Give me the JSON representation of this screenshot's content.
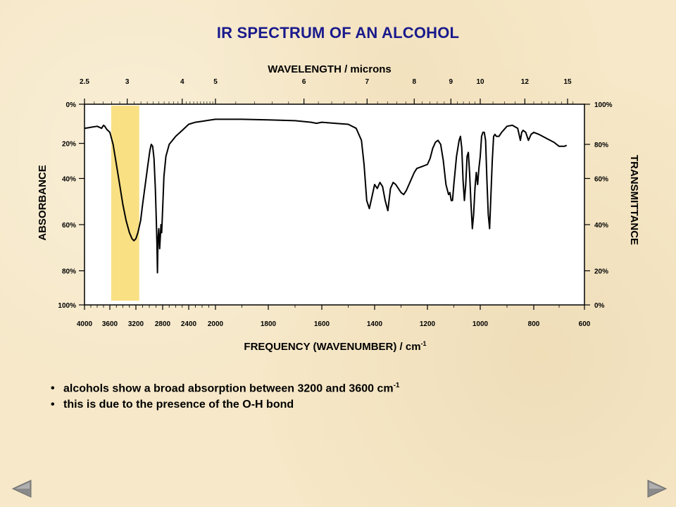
{
  "title": "IR SPECTRUM OF AN ALCOHOL",
  "bullets": [
    {
      "text": "alcohols show a broad absorption between 3200 and 3600 cm",
      "sup": "-1"
    },
    {
      "text": "this is due to the presence of the O-H bond",
      "sup": ""
    }
  ],
  "nav": {
    "prev_icon": "triangle-left-icon",
    "next_icon": "triangle-right-icon"
  },
  "colors": {
    "title": "#1a1a8c",
    "highlight": "#f9e083",
    "spectrum": "#000000",
    "nav": "#8a8a8a"
  },
  "chart_data": {
    "type": "line",
    "title": "",
    "top_axis_label": "WAVELENGTH / microns",
    "top_axis_ticks": [
      "2.5",
      "3",
      "4",
      "5",
      "6",
      "7",
      "8",
      "9",
      "10",
      "12",
      "15"
    ],
    "top_axis_tick_values_um": [
      2.5,
      3,
      4,
      5,
      6,
      7,
      8,
      9,
      10,
      12,
      15
    ],
    "xlabel": "FREQUENCY (WAVENUMBER) / cm",
    "xlabel_sup": "-1",
    "x_ticks": [
      "4000",
      "3600",
      "3200",
      "2800",
      "2400",
      "2000",
      "1800",
      "1600",
      "1400",
      "1200",
      "1000",
      "800",
      "600"
    ],
    "left_label": "ABSORBANCE",
    "left_ticks": [
      "0%",
      "20%",
      "40%",
      "60%",
      "80%",
      "100%"
    ],
    "right_label": "TRANSMITTANCE",
    "right_ticks": [
      "100%",
      "80%",
      "60%",
      "40%",
      "20%",
      "0%"
    ],
    "highlight_region_cm": [
      3580,
      3150
    ],
    "series": [
      {
        "points": [
          [
            4000,
            88
          ],
          [
            3900,
            88.5
          ],
          [
            3800,
            89
          ],
          [
            3730,
            88
          ],
          [
            3700,
            89.5
          ],
          [
            3680,
            89
          ],
          [
            3650,
            87.5
          ],
          [
            3600,
            86
          ],
          [
            3550,
            80
          ],
          [
            3500,
            70
          ],
          [
            3450,
            60
          ],
          [
            3400,
            50
          ],
          [
            3350,
            42
          ],
          [
            3300,
            36
          ],
          [
            3260,
            33
          ],
          [
            3230,
            32
          ],
          [
            3200,
            33
          ],
          [
            3170,
            36
          ],
          [
            3130,
            42
          ],
          [
            3100,
            50
          ],
          [
            3060,
            60
          ],
          [
            3020,
            70
          ],
          [
            2990,
            77
          ],
          [
            2970,
            80
          ],
          [
            2950,
            79
          ],
          [
            2930,
            73
          ],
          [
            2910,
            58
          ],
          [
            2895,
            42
          ],
          [
            2885,
            30
          ],
          [
            2878,
            16
          ],
          [
            2870,
            32
          ],
          [
            2858,
            38
          ],
          [
            2845,
            28
          ],
          [
            2835,
            34
          ],
          [
            2825,
            40
          ],
          [
            2815,
            36
          ],
          [
            2800,
            48
          ],
          [
            2780,
            64
          ],
          [
            2750,
            74
          ],
          [
            2700,
            80
          ],
          [
            2600,
            84
          ],
          [
            2500,
            87
          ],
          [
            2400,
            90
          ],
          [
            2300,
            91
          ],
          [
            2200,
            91.5
          ],
          [
            2100,
            92
          ],
          [
            2000,
            92.5
          ],
          [
            1900,
            92.5
          ],
          [
            1800,
            92.2
          ],
          [
            1700,
            91.8
          ],
          [
            1640,
            91
          ],
          [
            1620,
            90.5
          ],
          [
            1600,
            91
          ],
          [
            1550,
            90.5
          ],
          [
            1500,
            90
          ],
          [
            1470,
            88
          ],
          [
            1450,
            82
          ],
          [
            1440,
            70
          ],
          [
            1430,
            52
          ],
          [
            1420,
            48
          ],
          [
            1410,
            54
          ],
          [
            1400,
            60
          ],
          [
            1390,
            58
          ],
          [
            1380,
            61
          ],
          [
            1370,
            59
          ],
          [
            1360,
            52
          ],
          [
            1350,
            47
          ],
          [
            1340,
            58
          ],
          [
            1330,
            61
          ],
          [
            1320,
            60
          ],
          [
            1300,
            56
          ],
          [
            1290,
            55
          ],
          [
            1280,
            57
          ],
          [
            1270,
            60
          ],
          [
            1250,
            66
          ],
          [
            1240,
            68
          ],
          [
            1220,
            69
          ],
          [
            1200,
            70
          ],
          [
            1190,
            73
          ],
          [
            1180,
            78
          ],
          [
            1170,
            81
          ],
          [
            1160,
            82
          ],
          [
            1150,
            80
          ],
          [
            1140,
            72
          ],
          [
            1130,
            60
          ],
          [
            1120,
            55
          ],
          [
            1115,
            56
          ],
          [
            1110,
            52
          ],
          [
            1105,
            52
          ],
          [
            1100,
            60
          ],
          [
            1090,
            74
          ],
          [
            1080,
            82
          ],
          [
            1075,
            84
          ],
          [
            1070,
            78
          ],
          [
            1065,
            62
          ],
          [
            1060,
            52
          ],
          [
            1055,
            60
          ],
          [
            1050,
            74
          ],
          [
            1045,
            76
          ],
          [
            1040,
            65
          ],
          [
            1035,
            50
          ],
          [
            1030,
            38
          ],
          [
            1025,
            45
          ],
          [
            1020,
            58
          ],
          [
            1015,
            66
          ],
          [
            1010,
            60
          ],
          [
            1005,
            68
          ],
          [
            1000,
            74
          ],
          [
            995,
            84
          ],
          [
            990,
            86
          ],
          [
            985,
            86
          ],
          [
            980,
            82
          ],
          [
            975,
            62
          ],
          [
            970,
            45
          ],
          [
            965,
            38
          ],
          [
            960,
            55
          ],
          [
            955,
            72
          ],
          [
            950,
            84
          ],
          [
            945,
            85
          ],
          [
            940,
            84
          ],
          [
            930,
            84
          ],
          [
            920,
            86
          ],
          [
            900,
            89
          ],
          [
            880,
            89.5
          ],
          [
            860,
            88
          ],
          [
            850,
            82
          ],
          [
            845,
            86
          ],
          [
            840,
            87
          ],
          [
            830,
            86
          ],
          [
            820,
            82
          ],
          [
            810,
            85
          ],
          [
            800,
            86
          ],
          [
            780,
            85
          ],
          [
            750,
            83
          ],
          [
            720,
            81
          ],
          [
            700,
            79
          ],
          [
            680,
            79
          ],
          [
            670,
            79.5
          ]
        ]
      }
    ]
  }
}
